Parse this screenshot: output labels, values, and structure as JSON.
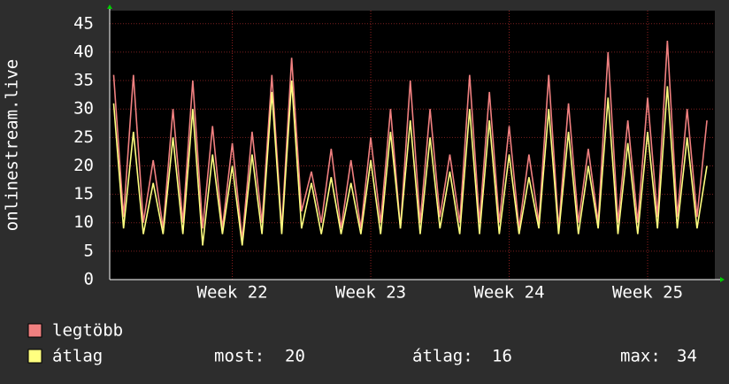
{
  "chart_data": {
    "type": "line",
    "y_label": "onlinestream.live",
    "x": [
      0,
      0.5,
      1,
      1.5,
      2,
      2.5,
      3,
      3.5,
      4,
      4.5,
      5,
      5.5,
      6,
      6.5,
      7,
      7.5,
      8,
      8.5,
      9,
      9.5,
      10,
      10.5,
      11,
      11.5,
      12,
      12.5,
      13,
      13.5,
      14,
      14.5,
      15,
      15.5,
      16,
      16.5,
      17,
      17.5,
      18,
      18.5,
      19,
      19.5,
      20,
      20.5,
      21,
      21.5,
      22,
      22.5,
      23,
      23.5,
      24,
      24.5,
      25,
      25.5,
      26,
      26.5,
      27,
      27.5,
      28,
      28.5,
      29,
      29.5,
      30
    ],
    "xlim": [
      -0.2,
      30.4
    ],
    "xticks": [
      {
        "value": 6,
        "label": "Week 22"
      },
      {
        "value": 13,
        "label": "Week 23"
      },
      {
        "value": 20,
        "label": "Week 24"
      },
      {
        "value": 27,
        "label": "Week 25"
      }
    ],
    "ylim": [
      0,
      47.3
    ],
    "yticks": [
      0,
      5,
      10,
      15,
      20,
      25,
      30,
      35,
      40,
      45
    ],
    "grid": true,
    "series": [
      {
        "name": "legtöbb",
        "color": "#f08080",
        "values": [
          36,
          11,
          36,
          10,
          21,
          9,
          30,
          10,
          35,
          9,
          27,
          9,
          24,
          7,
          26,
          10,
          36,
          9,
          39,
          12,
          19,
          10,
          23,
          9,
          21,
          9,
          25,
          10,
          30,
          9,
          35,
          10,
          30,
          11,
          22,
          10,
          36,
          10,
          33,
          10,
          27,
          9,
          22,
          10,
          36,
          9,
          31,
          10,
          23,
          10,
          40,
          10,
          28,
          10,
          32,
          11,
          42,
          11,
          30,
          11,
          28
        ]
      },
      {
        "name": "átlag",
        "color": "#ffff80",
        "values": [
          31,
          9,
          26,
          8,
          17,
          8,
          25,
          8,
          30,
          6,
          22,
          8,
          20,
          6,
          22,
          8,
          33,
          8,
          35,
          9,
          17,
          8,
          18,
          8,
          17,
          8,
          21,
          8,
          26,
          9,
          28,
          8,
          25,
          9,
          19,
          8,
          30,
          8,
          28,
          8,
          22,
          8,
          18,
          9,
          30,
          8,
          26,
          8,
          20,
          9,
          32,
          8,
          24,
          8,
          26,
          9,
          34,
          9,
          25,
          9,
          20
        ]
      }
    ],
    "stats": [
      {
        "label": "most:",
        "value": 20
      },
      {
        "label": "átlag:",
        "value": 16
      },
      {
        "label": "max:",
        "value": 34
      }
    ]
  }
}
